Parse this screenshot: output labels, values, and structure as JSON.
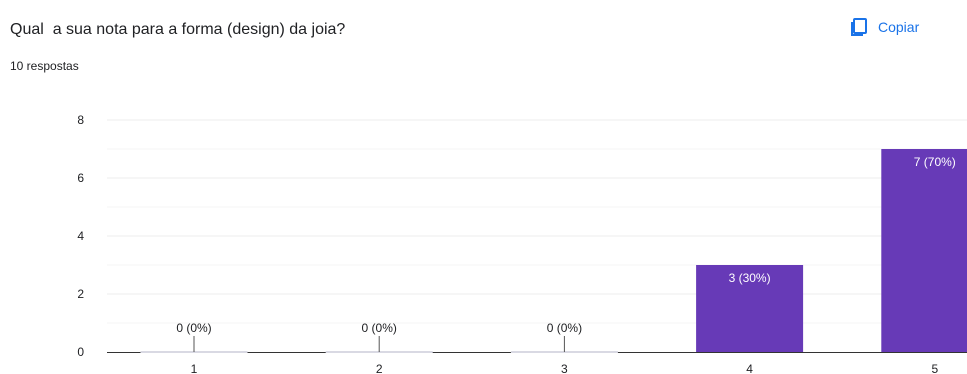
{
  "question": {
    "title": "Qual  a sua nota para a forma (design) da joia?",
    "response_count": "10 respostas"
  },
  "toolbar": {
    "copy_label": "Copiar",
    "copy_icon": "copy-icon",
    "accent_color": "#1a73e8"
  },
  "chart_data": {
    "type": "bar",
    "categories": [
      "1",
      "2",
      "3",
      "4",
      "5"
    ],
    "values": [
      0,
      0,
      0,
      3,
      7
    ],
    "data_labels": [
      "0 (0%)",
      "0 (0%)",
      "0 (0%)",
      "3 (30%)",
      "7 (70%)"
    ],
    "ylim": [
      0,
      8
    ],
    "yticks": [
      0,
      2,
      4,
      6,
      8
    ],
    "grid": true,
    "bar_color": "#673ab7",
    "title": "",
    "xlabel": "",
    "ylabel": ""
  }
}
